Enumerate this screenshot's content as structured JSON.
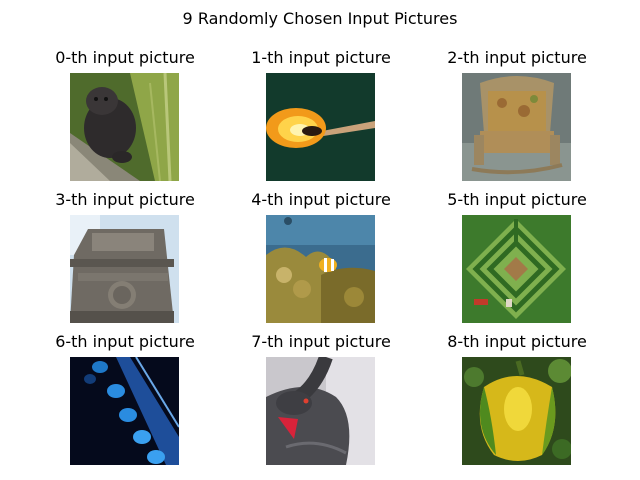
{
  "figure": {
    "title": "9 Randomly Chosen Input Pictures"
  },
  "panels": [
    {
      "caption": "0-th input picture",
      "subject": "mink"
    },
    {
      "caption": "1-th input picture",
      "subject": "burning-match"
    },
    {
      "caption": "2-th input picture",
      "subject": "wicker-rocking-chair"
    },
    {
      "caption": "3-th input picture",
      "subject": "stone-triumphal-arch"
    },
    {
      "caption": "4-th input picture",
      "subject": "clownfish-coral-reef"
    },
    {
      "caption": "5-th input picture",
      "subject": "hedge-maze"
    },
    {
      "caption": "6-th input picture",
      "subject": "blue-keypad"
    },
    {
      "caption": "7-th input picture",
      "subject": "black-swan"
    },
    {
      "caption": "8-th input picture",
      "subject": "bell-pepper"
    }
  ]
}
